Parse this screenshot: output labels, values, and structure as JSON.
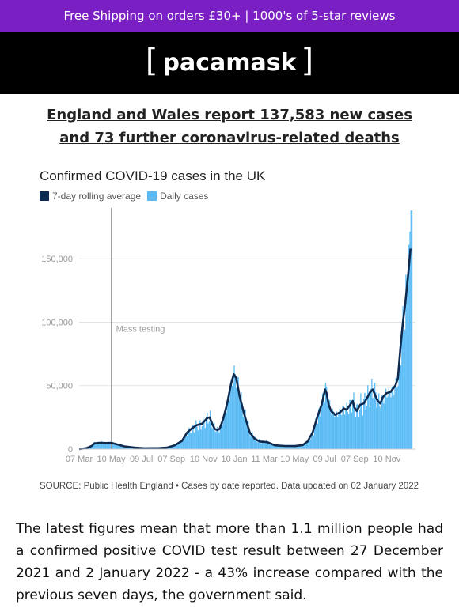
{
  "topbar": {
    "text": "Free Shipping on orders £30+ | 1000's of 5-star reviews"
  },
  "header": {
    "logo_left": "[",
    "logo_text": "pacamask",
    "logo_right": "]"
  },
  "headline": "England and Wales report 137,583 new cases and 73 further coronavirus-related deaths",
  "chart_data": {
    "type": "bar",
    "title": "Confirmed COVID-19 cases in the UK",
    "legend": [
      "7-day rolling average",
      "Daily cases"
    ],
    "colors": {
      "average": "#0f2a4f",
      "daily": "#5bbcf5"
    },
    "y_ticks": [
      "0",
      "50,000",
      "100,000",
      "150,000"
    ],
    "y_tick_values": [
      0,
      50000,
      100000,
      150000
    ],
    "ylim": [
      0,
      190000
    ],
    "x_ticks": [
      "07 Mar",
      "10 May",
      "09 Jul",
      "07 Sep",
      "10 Nov",
      "10 Jan",
      "11 Mar",
      "10 May",
      "09 Jul",
      "07 Sep",
      "10 Nov"
    ],
    "x_tick_days": [
      0,
      64,
      124,
      184,
      248,
      309,
      369,
      429,
      489,
      549,
      613
    ],
    "x_range_days": [
      0,
      670
    ],
    "annotation": {
      "text": "Mass testing",
      "day": 64
    },
    "series_average": [
      [
        0,
        0
      ],
      [
        15,
        800
      ],
      [
        25,
        2500
      ],
      [
        30,
        4500
      ],
      [
        40,
        5000
      ],
      [
        55,
        4800
      ],
      [
        64,
        5000
      ],
      [
        75,
        3800
      ],
      [
        90,
        2200
      ],
      [
        110,
        1200
      ],
      [
        130,
        700
      ],
      [
        160,
        800
      ],
      [
        175,
        1200
      ],
      [
        190,
        3000
      ],
      [
        205,
        6500
      ],
      [
        215,
        13000
      ],
      [
        225,
        16500
      ],
      [
        235,
        19000
      ],
      [
        245,
        20000
      ],
      [
        255,
        24500
      ],
      [
        260,
        25000
      ],
      [
        265,
        20000
      ],
      [
        270,
        16000
      ],
      [
        275,
        15000
      ],
      [
        280,
        16000
      ],
      [
        287,
        24000
      ],
      [
        295,
        36000
      ],
      [
        303,
        52000
      ],
      [
        308,
        59000
      ],
      [
        313,
        56000
      ],
      [
        320,
        41000
      ],
      [
        330,
        26000
      ],
      [
        340,
        13000
      ],
      [
        350,
        8000
      ],
      [
        360,
        6000
      ],
      [
        375,
        5500
      ],
      [
        390,
        3000
      ],
      [
        410,
        2500
      ],
      [
        430,
        2400
      ],
      [
        445,
        3200
      ],
      [
        455,
        6000
      ],
      [
        465,
        13000
      ],
      [
        475,
        26000
      ],
      [
        483,
        35000
      ],
      [
        487,
        42000
      ],
      [
        490,
        47000
      ],
      [
        493,
        44000
      ],
      [
        497,
        35000
      ],
      [
        502,
        30000
      ],
      [
        510,
        27000
      ],
      [
        520,
        29000
      ],
      [
        527,
        32000
      ],
      [
        533,
        31000
      ],
      [
        540,
        35000
      ],
      [
        545,
        38000
      ],
      [
        548,
        33000
      ],
      [
        553,
        30000
      ],
      [
        560,
        35000
      ],
      [
        567,
        36000
      ],
      [
        573,
        40000
      ],
      [
        580,
        45000
      ],
      [
        585,
        47000
      ],
      [
        590,
        42000
      ],
      [
        595,
        38000
      ],
      [
        600,
        36000
      ],
      [
        605,
        41000
      ],
      [
        612,
        44000
      ],
      [
        620,
        45000
      ],
      [
        630,
        50000
      ],
      [
        635,
        56000
      ],
      [
        640,
        80000
      ],
      [
        645,
        100000
      ],
      [
        650,
        116000
      ],
      [
        656,
        140000
      ],
      [
        660,
        158000
      ]
    ],
    "source": "SOURCE: Public Health England • Cases by date reported. Data updated on 02 January 2022"
  },
  "body_text": "The latest figures mean that more than 1.1 million people had a confirmed positive COVID test result between 27 December 2021 and 2 January 2022 - a 43% increase compared with the previous seven days, the government said."
}
